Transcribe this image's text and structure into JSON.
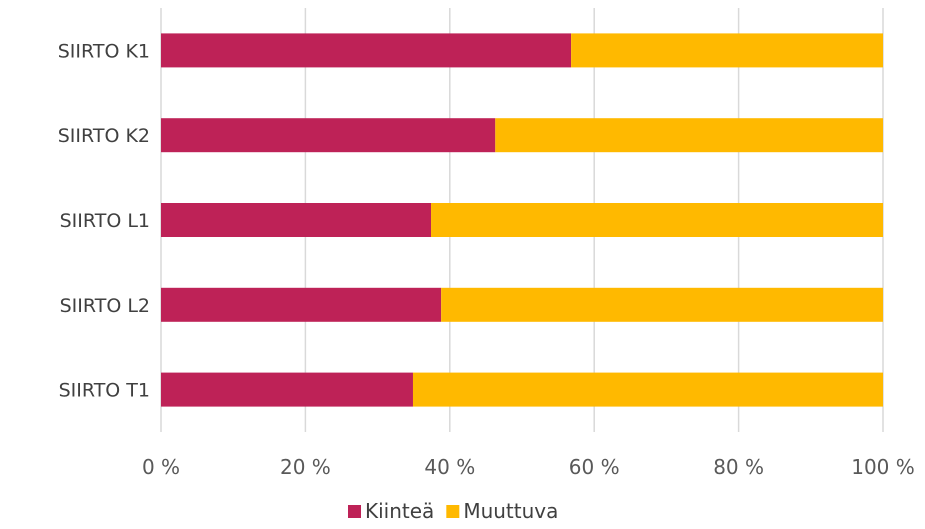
{
  "chart_data": {
    "type": "bar",
    "orientation": "horizontal",
    "stacked": "percent",
    "categories": [
      "SIIRTO K1",
      "SIIRTO K2",
      "SIIRTO L1",
      "SIIRTO L2",
      "SIIRTO T1"
    ],
    "series": [
      {
        "name": "Kiinteä",
        "color": "#be2257",
        "values": [
          56.8,
          46.3,
          37.4,
          38.8,
          34.9
        ]
      },
      {
        "name": "Muuttuva",
        "color": "#ffb900",
        "values": [
          43.2,
          53.7,
          62.6,
          61.2,
          65.1
        ]
      }
    ],
    "xticks": [
      "0 %",
      "20 %",
      "40 %",
      "60 %",
      "80 %",
      "100 %"
    ],
    "xlim": [
      0,
      100
    ],
    "grid": true,
    "legend": "bottom"
  }
}
